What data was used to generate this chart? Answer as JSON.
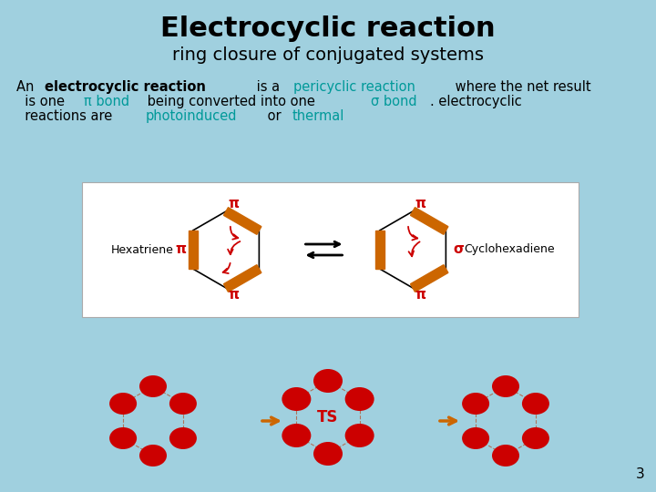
{
  "bg_color": "#a0d0df",
  "title": "Electrocyclic reaction",
  "subtitle": "ring closure of conjugated systems",
  "title_color": "#000000",
  "subtitle_color": "#000000",
  "title_fontsize": 22,
  "subtitle_fontsize": 14,
  "body_fontsize": 10.5,
  "box_color": "#ffffff",
  "red_color": "#cc0000",
  "orange_color": "#cc6600",
  "teal_color": "#009999",
  "ellipse_color": "#cc0000",
  "page_number": "3",
  "pi": "π",
  "sigma": "σ"
}
